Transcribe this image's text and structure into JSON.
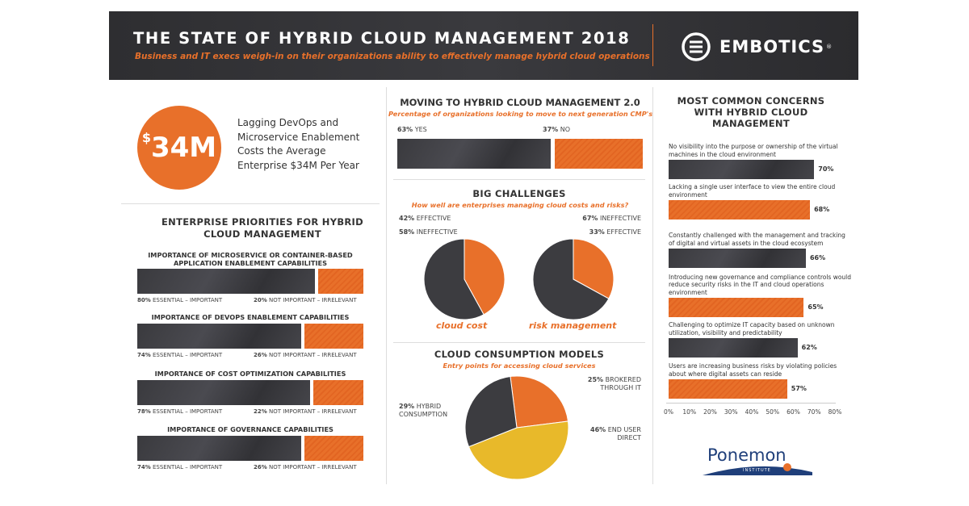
{
  "header": {
    "title": "THE STATE OF HYBRID CLOUD MANAGEMENT 2018",
    "subtitle": "Business and IT execs weigh-in on their organizations ability to effectively manage hybrid cloud operations",
    "brand": "EMBOTICS",
    "brand_mark": "®"
  },
  "headline": {
    "value": "$34M",
    "currency": "$",
    "amount": "34M",
    "text": "Lagging DevOps and Microservice Enablement Costs the Average Enterprise $34M Per Year"
  },
  "colors": {
    "orange": "#e8702a",
    "dark": "#3c3c40",
    "yellow": "#e8b92a"
  },
  "chart_data": [
    {
      "type": "bar",
      "title": "ENTERPRISE PRIORITIES FOR HYBRID CLOUD MANAGEMENT",
      "stacked": true,
      "groups": [
        {
          "title": "IMPORTANCE OF MICROSERVICE OR CONTAINER-BASED APPLICATION ENABLEMENT CAPABILITIES",
          "values": [
            80,
            20
          ],
          "labels": [
            "80%",
            "20%"
          ]
        },
        {
          "title": "IMPORTANCE OF DEVOPS ENABLEMENT CAPABILITIES",
          "values": [
            74,
            26
          ],
          "labels": [
            "74%",
            "26%"
          ]
        },
        {
          "title": "IMPORTANCE OF COST OPTIMIZATION CAPABILITIES",
          "values": [
            78,
            22
          ],
          "labels": [
            "78%",
            "22%"
          ]
        },
        {
          "title": "IMPORTANCE OF GOVERNANCE CAPABILITIES",
          "values": [
            74,
            26
          ],
          "labels": [
            "74%",
            "26%"
          ]
        }
      ],
      "series": [
        {
          "name": "ESSENTIAL – IMPORTANT"
        },
        {
          "name": "NOT IMPORTANT – IRRELEVANT"
        }
      ]
    },
    {
      "type": "bar",
      "stacked": true,
      "title": "MOVING TO HYBRID CLOUD MANAGEMENT 2.0",
      "subtitle": "Percentage of organizations looking to move to next generation CMP's",
      "categories": [
        "YES",
        "NO"
      ],
      "values": [
        63,
        37
      ],
      "labels": [
        "63%",
        "37%"
      ]
    },
    {
      "type": "pie",
      "title": "BIG CHALLENGES",
      "subtitle": "How well are enterprises managing cloud costs and risks?",
      "pies": [
        {
          "caption": "cloud cost",
          "slices": [
            {
              "name": "EFFECTIVE",
              "value": 42,
              "label": "42%"
            },
            {
              "name": "INEFFECTIVE",
              "value": 58,
              "label": "58%"
            }
          ]
        },
        {
          "caption": "risk management",
          "slices": [
            {
              "name": "INEFFECTIVE",
              "value": 67,
              "label": "67%"
            },
            {
              "name": "EFFECTIVE",
              "value": 33,
              "label": "33%"
            }
          ]
        }
      ]
    },
    {
      "type": "pie",
      "title": "CLOUD CONSUMPTION MODELS",
      "subtitle": "Entry points for accessing cloud services",
      "slices": [
        {
          "name": "BROKERED THROUGH IT",
          "value": 25,
          "label": "25%",
          "color": "#e8702a"
        },
        {
          "name": "END USER DIRECT",
          "value": 46,
          "label": "46%",
          "color": "#e8b92a"
        },
        {
          "name": "HYBRID CONSUMPTION",
          "value": 29,
          "label": "29%",
          "color": "#3c3c40"
        }
      ]
    },
    {
      "type": "bar",
      "orientation": "horizontal",
      "title": "MOST COMMON CONCERNS WITH HYBRID CLOUD MANAGEMENT",
      "xlim": [
        0,
        80
      ],
      "xticks": [
        "0%",
        "10%",
        "20%",
        "30%",
        "40%",
        "50%",
        "60%",
        "70%",
        "80%"
      ],
      "categories": [
        "No visibility into the purpose or ownership of the virtual machines in the cloud environment",
        "Lacking a single user interface to view the entire cloud environment",
        "Constantly challenged with the management and tracking of digital and virtual assets in the cloud ecosystem",
        "Introducing new governance and compliance controls would reduce security risks in the IT and cloud operations environment",
        "Challenging to optimize IT capacity based on unknown utilization, visibility and predictability",
        "Users are increasing business risks by violating policies about where digital assets can reside"
      ],
      "values": [
        70,
        68,
        66,
        65,
        62,
        57
      ],
      "labels": [
        "70%",
        "68%",
        "66%",
        "65%",
        "62%",
        "57%"
      ]
    }
  ],
  "footer": {
    "logo": "Ponemon",
    "logo_sub": "INSTITUTE"
  }
}
